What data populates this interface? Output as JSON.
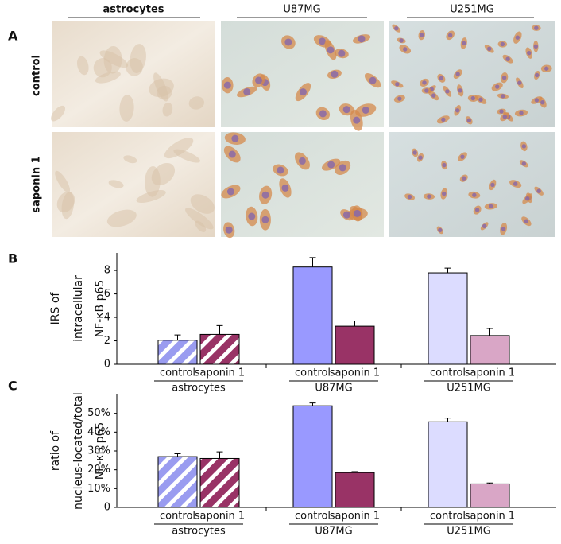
{
  "panel_labels": [
    "A",
    "B",
    "C"
  ],
  "micrographs": {
    "columns": [
      "astrocytes",
      "U87MG",
      "U251MG"
    ],
    "rows": [
      "control",
      "saponin 1"
    ]
  },
  "chart_data": [
    {
      "type": "bar",
      "ylabel": [
        "IRS of",
        "intracellular",
        "NF-κB p65"
      ],
      "groups": [
        "astrocytes",
        "U87MG",
        "U251MG"
      ],
      "hatched": [
        true,
        false,
        false
      ],
      "series": [
        {
          "name": "control",
          "values": [
            2.05,
            8.3,
            7.8
          ],
          "errors": [
            0.45,
            0.8,
            0.4
          ],
          "colors": [
            "#9a9cf0",
            "#9999ff",
            "#dcdcff"
          ]
        },
        {
          "name": "saponin 1",
          "values": [
            2.55,
            3.25,
            2.45
          ],
          "errors": [
            0.75,
            0.45,
            0.6
          ],
          "colors": [
            "#993366",
            "#993366",
            "#d9a6c6"
          ]
        }
      ],
      "ylim": [
        0,
        9.5
      ],
      "yticks": [
        0,
        2,
        4,
        6,
        8
      ]
    },
    {
      "type": "bar",
      "ylabel": [
        "ratio of",
        "nucleus-located/total",
        "NF-κB p65"
      ],
      "groups": [
        "astrocytes",
        "U87MG",
        "U251MG"
      ],
      "hatched": [
        true,
        false,
        false
      ],
      "series": [
        {
          "name": "control",
          "values": [
            27,
            54,
            45.5
          ],
          "errors": [
            1.5,
            1.5,
            2
          ],
          "colors": [
            "#9a9cf0",
            "#9999ff",
            "#dcdcff"
          ]
        },
        {
          "name": "saponin 1",
          "values": [
            26,
            18.5,
            12.5
          ],
          "errors": [
            3.5,
            0.5,
            0.5
          ],
          "colors": [
            "#993366",
            "#993366",
            "#d9a6c6"
          ]
        }
      ],
      "ylim": [
        0,
        60
      ],
      "yticks": [
        0,
        {
          "value": 10,
          "label": "10%"
        },
        {
          "value": 20,
          "label": "20%"
        },
        {
          "value": 30,
          "label": "30%"
        },
        {
          "value": 40,
          "label": "40%"
        },
        {
          "value": 50,
          "label": "50%"
        }
      ]
    }
  ]
}
